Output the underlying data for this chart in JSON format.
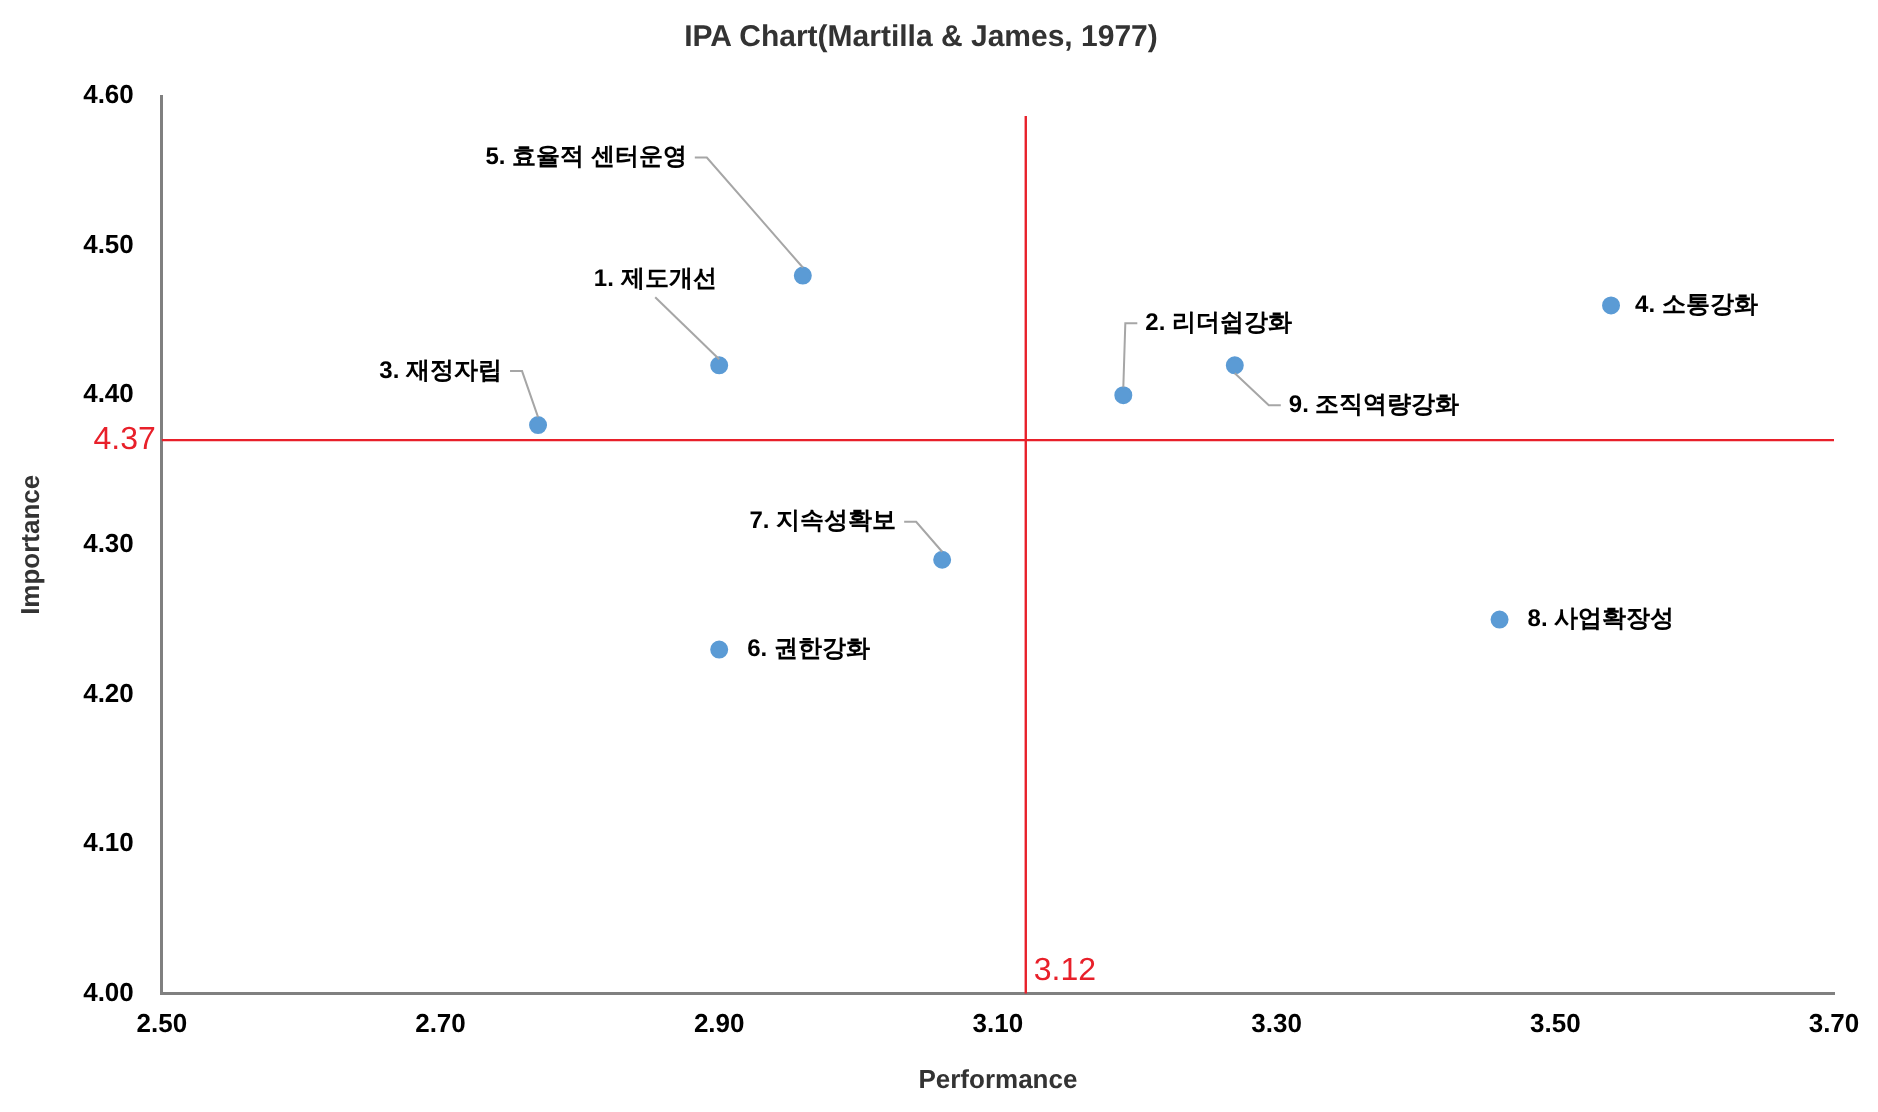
{
  "chart_data": {
    "type": "scatter",
    "title": "IPA Chart(Martilla & James, 1977)",
    "xlabel": "Performance",
    "ylabel": "Importance",
    "series": [
      {
        "color": "#5b9bd5",
        "x": [
          2.9,
          3.19,
          2.77,
          3.54,
          2.96,
          2.9,
          3.06,
          3.46,
          3.27
        ],
        "values": [
          4.42,
          4.4,
          4.38,
          4.46,
          4.48,
          4.23,
          4.29,
          4.25,
          4.42
        ]
      }
    ],
    "annotations": [
      {
        "text": "1. 제도개선",
        "x": 2.9,
        "y": 4.42
      },
      {
        "text": "2. 리더쉽강화",
        "x": 3.19,
        "y": 4.4
      },
      {
        "text": "3. 재정자립",
        "x": 2.77,
        "y": 4.38
      },
      {
        "text": "4. 소통강화",
        "x": 3.54,
        "y": 4.46
      },
      {
        "text": "5. 효율적 센터운영",
        "x": 2.96,
        "y": 4.48
      },
      {
        "text": "6. 권한강화",
        "x": 2.9,
        "y": 4.23
      },
      {
        "text": "7. 지속성확보",
        "x": 3.06,
        "y": 4.29
      },
      {
        "text": "8. 사업확장성",
        "x": 3.46,
        "y": 4.25
      },
      {
        "text": "9. 조직역량강화",
        "x": 3.27,
        "y": 4.42
      }
    ],
    "xlim": [
      2.5,
      3.7
    ],
    "xticks": [
      {
        "value": 2.5,
        "label": "2.50"
      },
      {
        "value": 2.7,
        "label": "2.70"
      },
      {
        "value": 2.9,
        "label": "2.90"
      },
      {
        "value": 3.1,
        "label": "3.10"
      },
      {
        "value": 3.3,
        "label": "3.30"
      },
      {
        "value": 3.5,
        "label": "3.50"
      },
      {
        "value": 3.7,
        "label": "3.70"
      }
    ],
    "ylim": [
      4.0,
      4.6
    ],
    "yticks": [
      {
        "value": 4.0,
        "label": "4.00"
      },
      {
        "value": 4.1,
        "label": "4.10"
      },
      {
        "value": 4.2,
        "label": "4.20"
      },
      {
        "value": 4.3,
        "label": "4.30"
      },
      {
        "value": 4.4,
        "label": "4.40"
      },
      {
        "value": 4.5,
        "label": "4.50"
      },
      {
        "value": 4.6,
        "label": "4.60"
      }
    ],
    "ref_lines": [
      {
        "axis": "x",
        "value": 3.12,
        "label": "3.12",
        "color": "#e8202a"
      },
      {
        "axis": "y",
        "value": 4.37,
        "label": "4.37",
        "color": "#e8202a"
      }
    ],
    "grid": false,
    "legend": false,
    "marker": "circle"
  }
}
